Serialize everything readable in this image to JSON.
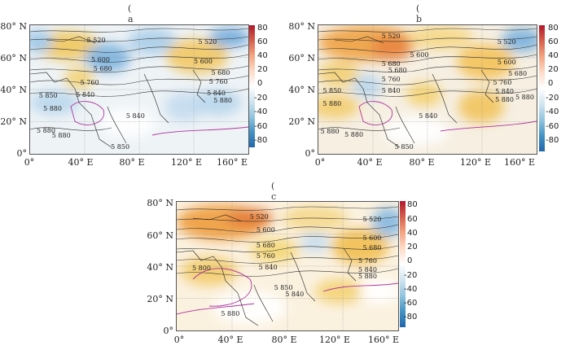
{
  "panels": [
    {
      "label": "( a )",
      "y_ticks": [
        "80° N",
        "60° N",
        "40° N",
        "20° N",
        "0°"
      ],
      "x_ticks": [
        "0°",
        "40° E",
        "80° E",
        "120° E",
        "160° E"
      ],
      "colorbar": [
        "80",
        "60",
        "40",
        "20",
        "0",
        "-20",
        "-40",
        "-60",
        "-80"
      ],
      "contours": [
        {
          "text": "5 520",
          "x": 26,
          "y": 9
        },
        {
          "text": "5 520",
          "x": 77,
          "y": 10
        },
        {
          "text": "5 600",
          "x": 28,
          "y": 24
        },
        {
          "text": "5 680",
          "x": 29,
          "y": 31
        },
        {
          "text": "5 600",
          "x": 75,
          "y": 25
        },
        {
          "text": "5 680",
          "x": 83,
          "y": 34
        },
        {
          "text": "5 760",
          "x": 23,
          "y": 42
        },
        {
          "text": "5 760",
          "x": 82,
          "y": 41
        },
        {
          "text": "5 850",
          "x": 4,
          "y": 52
        },
        {
          "text": "5 840",
          "x": 21,
          "y": 51
        },
        {
          "text": "5 840",
          "x": 81,
          "y": 50
        },
        {
          "text": "5 880",
          "x": 6,
          "y": 62
        },
        {
          "text": "5 880",
          "x": 84,
          "y": 56
        },
        {
          "text": "5 840",
          "x": 44,
          "y": 68
        },
        {
          "text": "5 880",
          "x": 3,
          "y": 79
        },
        {
          "text": "5 880",
          "x": 10,
          "y": 83
        },
        {
          "text": "5 850",
          "x": 37,
          "y": 92
        }
      ]
    },
    {
      "label": "( b )",
      "y_ticks": [
        "80° N",
        "60° N",
        "40° N",
        "20° N",
        "0°"
      ],
      "x_ticks": [
        "0°",
        "40° E",
        "80° E",
        "120° E",
        "160° E"
      ],
      "colorbar": [
        "80",
        "60",
        "40",
        "20",
        "0",
        "-20",
        "-40",
        "-60",
        "-80"
      ],
      "contours": [
        {
          "text": "5 520",
          "x": 29,
          "y": 6
        },
        {
          "text": "5 520",
          "x": 82,
          "y": 10
        },
        {
          "text": "5 600",
          "x": 42,
          "y": 20
        },
        {
          "text": "5 680",
          "x": 29,
          "y": 27
        },
        {
          "text": "5 600",
          "x": 82,
          "y": 26
        },
        {
          "text": "5 680",
          "x": 32,
          "y": 32
        },
        {
          "text": "5 680",
          "x": 87,
          "y": 35
        },
        {
          "text": "5 760",
          "x": 29,
          "y": 39
        },
        {
          "text": "5 760",
          "x": 80,
          "y": 42
        },
        {
          "text": "5 850",
          "x": 2,
          "y": 48
        },
        {
          "text": "5 840",
          "x": 29,
          "y": 48
        },
        {
          "text": "5 840",
          "x": 81,
          "y": 49
        },
        {
          "text": "5 880",
          "x": 2,
          "y": 58
        },
        {
          "text": "5 880",
          "x": 81,
          "y": 55
        },
        {
          "text": "5 880",
          "x": 93,
          "y": 53
        },
        {
          "text": "5 840",
          "x": 46,
          "y": 68
        },
        {
          "text": "5 880",
          "x": 1,
          "y": 80
        },
        {
          "text": "5 880",
          "x": 12,
          "y": 82
        },
        {
          "text": "5 850",
          "x": 35,
          "y": 92
        }
      ]
    },
    {
      "label": "( c )",
      "y_ticks": [
        "80° N",
        "60° N",
        "40° N",
        "20° N",
        "0°"
      ],
      "x_ticks": [
        "0°",
        "40° E",
        "80° E",
        "120° E",
        "160° E"
      ],
      "colorbar": [
        "80",
        "60",
        "40",
        "20",
        "0",
        "-20",
        "-40",
        "-60",
        "-80"
      ],
      "contours": [
        {
          "text": "5 520",
          "x": 33,
          "y": 9
        },
        {
          "text": "5 520",
          "x": 84,
          "y": 11
        },
        {
          "text": "5 600",
          "x": 36,
          "y": 19
        },
        {
          "text": "5 600",
          "x": 84,
          "y": 25
        },
        {
          "text": "5 680",
          "x": 36,
          "y": 31
        },
        {
          "text": "5 680",
          "x": 84,
          "y": 33
        },
        {
          "text": "5 760",
          "x": 36,
          "y": 39
        },
        {
          "text": "5 760",
          "x": 82,
          "y": 43
        },
        {
          "text": "5 800",
          "x": 7,
          "y": 49
        },
        {
          "text": "5 840",
          "x": 37,
          "y": 48
        },
        {
          "text": "5 840",
          "x": 82,
          "y": 50
        },
        {
          "text": "5 880",
          "x": 82,
          "y": 55
        },
        {
          "text": "5 850",
          "x": 44,
          "y": 64
        },
        {
          "text": "5 840",
          "x": 49,
          "y": 69
        },
        {
          "text": "5 880",
          "x": 20,
          "y": 84
        }
      ]
    }
  ]
}
